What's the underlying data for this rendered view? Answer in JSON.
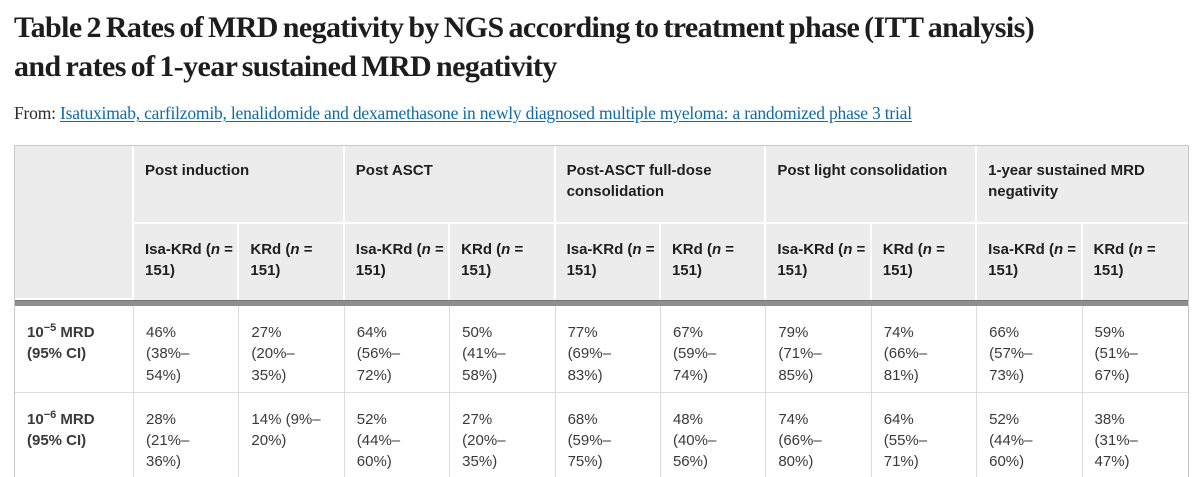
{
  "colors": {
    "link_blue": "#0f6ba7",
    "header_bg": "#ececec",
    "divider_gray": "#8f8f8f",
    "body_border": "#dcdcdc",
    "outer_border": "#c8c8c8",
    "title_text": "#1d1d1d",
    "body_text": "#3a3a3a"
  },
  "header": {
    "title_line1": "Table 2 Rates of MRD negativity by NGS according to treatment phase (ITT analysis)",
    "title_line2": "and rates of 1-year sustained MRD negativity",
    "from_label": "From:",
    "source_link": "Isatuximab, carfilzomib, lenalidomide and dexamethasone in newly diagnosed multiple myeloma: a randomized phase 3 trial"
  },
  "table": {
    "column_groups": [
      "Post induction",
      "Post ASCT",
      "Post-ASCT full-dose consolidation",
      "Post light consolidation",
      "1-year sustained MRD negativity"
    ],
    "subheaders": {
      "isa": {
        "prefix": "Isa-KRd (",
        "n": "n",
        "suffix": " = 151)"
      },
      "krd": {
        "prefix": "KRd (",
        "n": "n",
        "suffix": " = 151)"
      }
    },
    "rows": [
      {
        "label_base": "10",
        "label_sup": "−5",
        "label_rest": " MRD (95% CI)",
        "values": [
          "46% (38%–54%)",
          "27% (20%–35%)",
          "64% (56%–72%)",
          "50% (41%–58%)",
          "77% (69%–83%)",
          "67% (59%–74%)",
          "79% (71%–85%)",
          "74% (66%–81%)",
          "66% (57%–73%)",
          "59% (51%–67%)"
        ]
      },
      {
        "label_base": "10",
        "label_sup": "−6",
        "label_rest": " MRD (95% CI)",
        "values": [
          "28% (21%–36%)",
          "14% (9%–20%)",
          "52% (44%–60%)",
          "27% (20%–35%)",
          "68% (59%–75%)",
          "48% (40%–56%)",
          "74% (66%–80%)",
          "64% (55%–71%)",
          "52% (44%–60%)",
          "38% (31%–47%)"
        ]
      }
    ]
  }
}
